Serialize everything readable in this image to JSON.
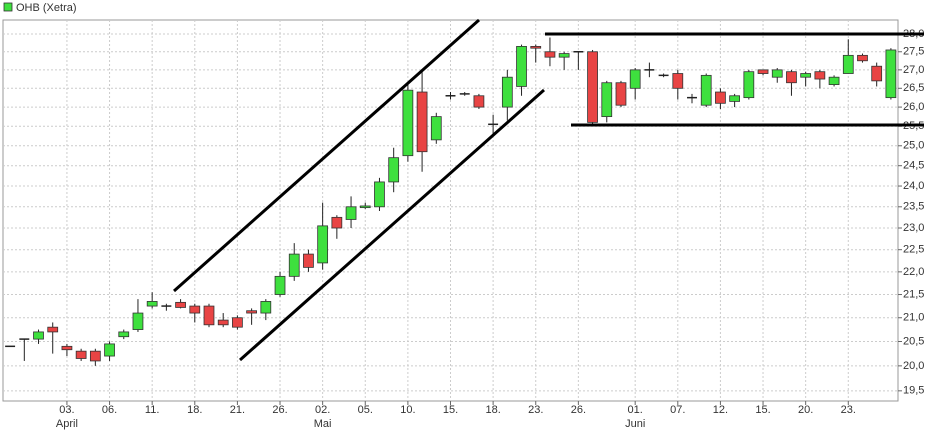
{
  "chart_data": {
    "type": "candlestick",
    "log_scale": true,
    "grid": true,
    "legend": "top-left",
    "ylim": [
      19.3,
      28.4
    ],
    "yticks": [
      {
        "value": 19.5,
        "label": "19,5"
      },
      {
        "value": 20,
        "label": "20,0"
      },
      {
        "value": 20.5,
        "label": "20,5"
      },
      {
        "value": 21,
        "label": "21,0"
      },
      {
        "value": 21.5,
        "label": "21,5"
      },
      {
        "value": 22,
        "label": "22,0"
      },
      {
        "value": 22.5,
        "label": "22,5"
      },
      {
        "value": 23,
        "label": "23,0"
      },
      {
        "value": 23.5,
        "label": "23,5"
      },
      {
        "value": 24,
        "label": "24,0"
      },
      {
        "value": 24.5,
        "label": "24,5"
      },
      {
        "value": 25,
        "label": "25,0"
      },
      {
        "value": 25.5,
        "label": "25,5"
      },
      {
        "value": 26,
        "label": "26,0"
      },
      {
        "value": 26.5,
        "label": "26,5"
      },
      {
        "value": 27,
        "label": "27,0"
      },
      {
        "value": 27.5,
        "label": "27,5"
      },
      {
        "value": 28,
        "label": "28,0"
      }
    ],
    "categories": [
      null,
      null,
      null,
      null,
      "03.",
      null,
      null,
      "06.",
      null,
      null,
      "11.",
      null,
      null,
      "18.",
      null,
      null,
      "21.",
      null,
      null,
      "26.",
      null,
      null,
      "02.",
      null,
      null,
      "05.",
      null,
      null,
      "10.",
      null,
      null,
      "15.",
      null,
      null,
      "18.",
      null,
      null,
      "23.",
      null,
      null,
      "26.",
      null,
      null,
      null,
      "01.",
      null,
      null,
      "07.",
      null,
      null,
      "12.",
      null,
      null,
      "15.",
      null,
      null,
      "20.",
      null,
      null,
      "23.",
      null,
      null,
      null
    ],
    "months": [
      null,
      null,
      null,
      null,
      "April",
      null,
      null,
      null,
      null,
      null,
      null,
      null,
      null,
      null,
      null,
      null,
      null,
      null,
      null,
      null,
      null,
      null,
      "Mai",
      null,
      null,
      null,
      null,
      null,
      null,
      null,
      null,
      null,
      null,
      null,
      null,
      null,
      null,
      null,
      null,
      null,
      null,
      null,
      null,
      null,
      "Juni",
      null,
      null,
      null,
      null,
      null,
      null,
      null,
      null,
      null,
      null,
      null,
      null,
      null,
      null,
      null,
      null,
      null,
      null
    ],
    "series": [
      {
        "name": "OHB (Xetra)",
        "up_color": "#3ee03e",
        "down_color": "#e84444",
        "open": [
          20.4,
          20.55,
          20.55,
          20.8,
          20.4,
          20.3,
          20.3,
          20.2,
          20.6,
          20.75,
          21.25,
          21.25,
          21.33,
          21.25,
          21.25,
          20.95,
          21.0,
          21.15,
          21.1,
          21.5,
          21.9,
          22.4,
          22.2,
          23.25,
          23.2,
          23.48,
          23.5,
          24.1,
          24.75,
          26.4,
          25.15,
          26.3,
          26.35,
          26.3,
          25.55,
          26.0,
          26.55,
          27.65,
          27.5,
          27.35,
          27.5,
          27.5,
          25.75,
          26.65,
          26.5,
          27.0,
          26.85,
          26.9,
          26.25,
          26.05,
          26.4,
          26.15,
          26.25,
          27.0,
          26.8,
          26.95,
          26.8,
          26.95,
          26.6,
          26.9,
          27.4,
          27.1,
          26.25
        ],
        "high": [
          20.4,
          20.55,
          20.75,
          20.9,
          20.45,
          20.35,
          20.35,
          20.5,
          20.75,
          21.4,
          21.55,
          21.3,
          21.4,
          21.3,
          21.3,
          21.1,
          21.05,
          21.2,
          21.4,
          22.0,
          22.65,
          22.5,
          23.6,
          23.3,
          23.75,
          23.6,
          24.2,
          24.95,
          26.6,
          26.95,
          25.85,
          26.4,
          26.4,
          26.35,
          25.8,
          27.0,
          27.7,
          27.7,
          27.9,
          27.5,
          27.5,
          27.55,
          26.7,
          26.7,
          27.05,
          27.2,
          26.9,
          27.0,
          26.35,
          26.9,
          26.5,
          26.35,
          27.0,
          27.0,
          27.05,
          27.0,
          26.95,
          27.0,
          26.85,
          27.85,
          27.45,
          27.2,
          27.6
        ],
        "low": [
          20.4,
          20.1,
          20.45,
          20.25,
          20.2,
          20.1,
          20.0,
          20.1,
          20.55,
          20.7,
          21.2,
          21.15,
          21.2,
          20.9,
          20.8,
          20.8,
          20.75,
          20.85,
          20.95,
          21.45,
          21.8,
          22.0,
          22.05,
          22.75,
          23.0,
          23.45,
          23.4,
          23.85,
          24.6,
          24.35,
          25.05,
          26.2,
          26.3,
          25.95,
          25.3,
          25.65,
          26.3,
          27.2,
          27.1,
          27.0,
          27.0,
          25.55,
          25.6,
          26.0,
          26.2,
          26.8,
          26.8,
          26.2,
          26.1,
          26.0,
          25.95,
          26.0,
          26.2,
          26.85,
          26.65,
          26.3,
          26.55,
          26.5,
          26.55,
          26.9,
          27.2,
          26.55,
          26.2
        ],
        "close": [
          20.4,
          20.55,
          20.7,
          20.7,
          20.33,
          20.15,
          20.1,
          20.45,
          20.7,
          21.1,
          21.35,
          21.25,
          21.22,
          21.1,
          20.85,
          20.85,
          20.8,
          21.1,
          21.35,
          21.9,
          22.4,
          22.1,
          23.05,
          23.0,
          23.5,
          23.52,
          24.1,
          24.7,
          26.45,
          24.85,
          25.75,
          26.3,
          26.35,
          26.0,
          25.55,
          26.8,
          27.65,
          27.6,
          27.35,
          27.45,
          27.5,
          25.6,
          26.65,
          26.05,
          27.0,
          27.0,
          26.85,
          26.5,
          26.25,
          26.85,
          26.1,
          26.3,
          26.95,
          26.9,
          27.0,
          26.65,
          26.9,
          26.75,
          26.8,
          27.4,
          27.25,
          26.7,
          27.55
        ]
      }
    ]
  }
}
